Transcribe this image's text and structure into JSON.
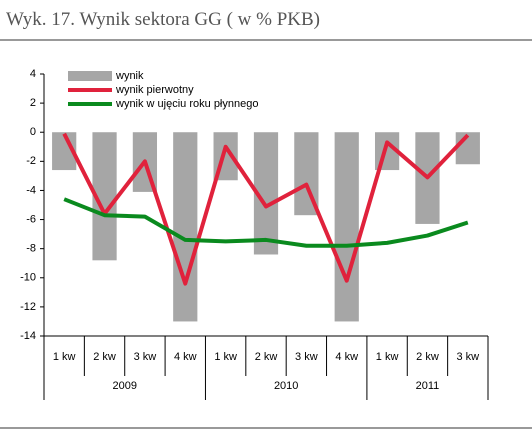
{
  "chart_data": {
    "type": "bar-line",
    "title": "Wyk. 17. Wynik sektora GG ( w % PKB)",
    "category_groups": [
      {
        "label": "2009",
        "categories": [
          "1 kw",
          "2 kw",
          "3 kw",
          "4 kw"
        ]
      },
      {
        "label": "2010",
        "categories": [
          "1 kw",
          "2 kw",
          "3 kw",
          "4 kw"
        ]
      },
      {
        "label": "2011",
        "categories": [
          "1 kw",
          "2 kw",
          "3 kw"
        ]
      }
    ],
    "series": [
      {
        "name": "wynik",
        "type": "bar",
        "color": "#a6a6a6",
        "values": [
          -2.6,
          -8.8,
          -4.1,
          -13.0,
          -3.3,
          -8.4,
          -5.7,
          -13.0,
          -2.6,
          -6.3,
          -2.2
        ]
      },
      {
        "name": "wynik pierwotny",
        "type": "line",
        "color": "#e0223c",
        "values": [
          -0.1,
          -5.6,
          -2.0,
          -10.4,
          -1.0,
          -5.1,
          -3.6,
          -10.2,
          -0.7,
          -3.1,
          -0.2
        ]
      },
      {
        "name": "wynik w ujęciu roku płynnego",
        "type": "line",
        "color": "#0a8a1e",
        "values": [
          -4.6,
          -5.7,
          -5.8,
          -7.4,
          -7.5,
          -7.4,
          -7.8,
          -7.8,
          -7.6,
          -7.1,
          -6.2
        ]
      }
    ],
    "ylim": [
      -14,
      4
    ],
    "yticks": [
      -14,
      -12,
      -10,
      -8,
      -6,
      -4,
      -2,
      0,
      2,
      4
    ],
    "legend": "top-left"
  }
}
